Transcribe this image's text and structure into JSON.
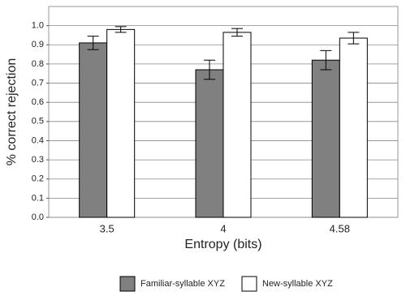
{
  "chart_data": {
    "type": "bar",
    "x_label": "Entropy (bits)",
    "y_label": "% correct rejection",
    "categories": [
      "3.5",
      "4",
      "4.58"
    ],
    "series": [
      {
        "name": "Familiar-syllable XYZ",
        "color": "#808080",
        "values": [
          0.91,
          0.77,
          0.82
        ],
        "errors": [
          0.035,
          0.05,
          0.05
        ]
      },
      {
        "name": "New-syllable XYZ",
        "color": "#ffffff",
        "values": [
          0.98,
          0.965,
          0.935
        ],
        "errors": [
          0.015,
          0.02,
          0.03
        ]
      }
    ],
    "ylim": [
      0,
      1.1
    ],
    "yticks": [
      {
        "value": 0,
        "label": "0.0"
      },
      0.1,
      0.2,
      0.3,
      0.4,
      0.5,
      0.6,
      0.7,
      0.8,
      0.9,
      {
        "value": 1,
        "label": "1.0"
      }
    ],
    "grid": true,
    "legend": "bottom"
  }
}
